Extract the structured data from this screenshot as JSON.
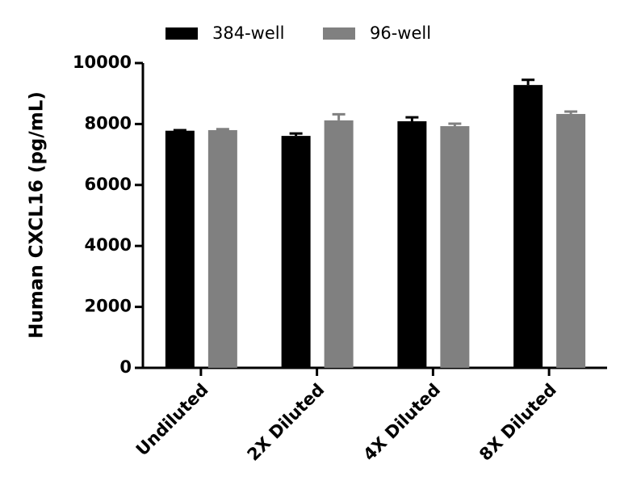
{
  "chart_data": {
    "type": "bar",
    "y_label": "Human CXCL16 (pg/mL)",
    "categories": [
      "Undiluted",
      "2X Diluted",
      "4X Diluted",
      "8X Diluted"
    ],
    "series": [
      {
        "name": "384-well",
        "color": "#000000",
        "values": [
          7780,
          7610,
          8090,
          9280
        ],
        "errors": [
          20,
          80,
          130,
          170
        ]
      },
      {
        "name": "96-well",
        "color": "#808080",
        "values": [
          7800,
          8120,
          7930,
          8330
        ],
        "errors": [
          30,
          200,
          80,
          80
        ]
      }
    ],
    "ylim": [
      0,
      10000
    ],
    "yticks": [
      0,
      2000,
      4000,
      6000,
      8000,
      10000
    ],
    "grid": false,
    "legend": "top"
  }
}
